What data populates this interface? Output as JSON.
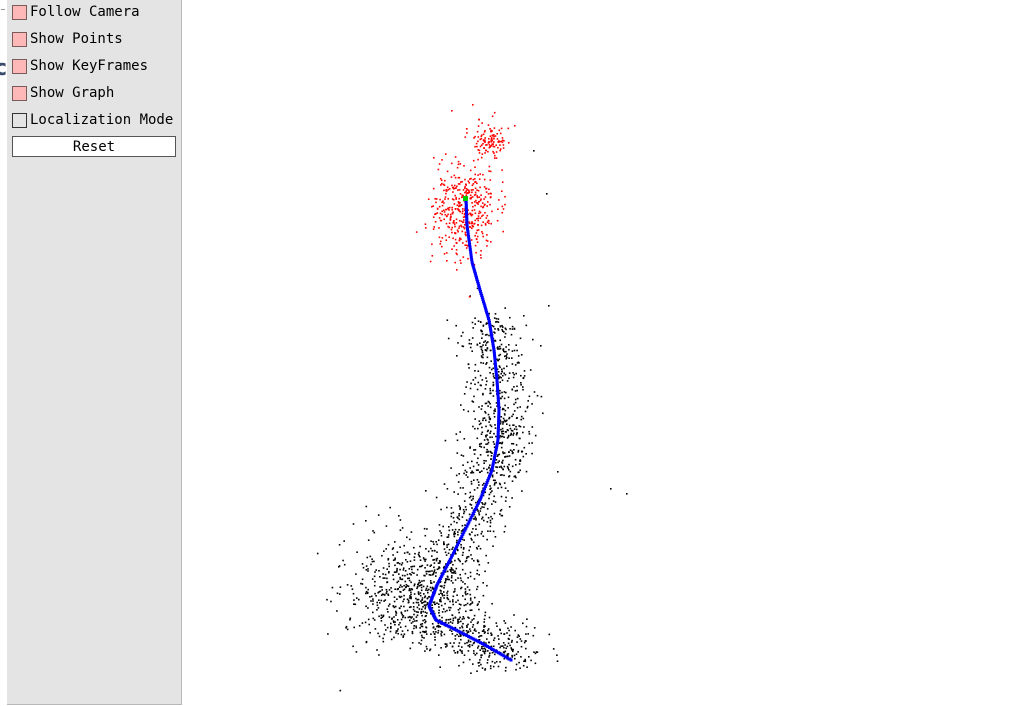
{
  "panel": {
    "checkboxes": [
      {
        "label": "Follow Camera",
        "checked": true
      },
      {
        "label": "Show Points",
        "checked": true
      },
      {
        "label": "Show KeyFrames",
        "checked": true
      },
      {
        "label": "Show Graph",
        "checked": true
      },
      {
        "label": "Localization Mode",
        "checked": false
      }
    ],
    "reset_label": "Reset"
  },
  "colors": {
    "panel_bg": "#e4e4e4",
    "checked_fill": "#ffb8b8",
    "map_points": "#000000",
    "reference_points": "#ff0000",
    "keyframes": "#0000ff",
    "current_frame": "#00cc00"
  }
}
